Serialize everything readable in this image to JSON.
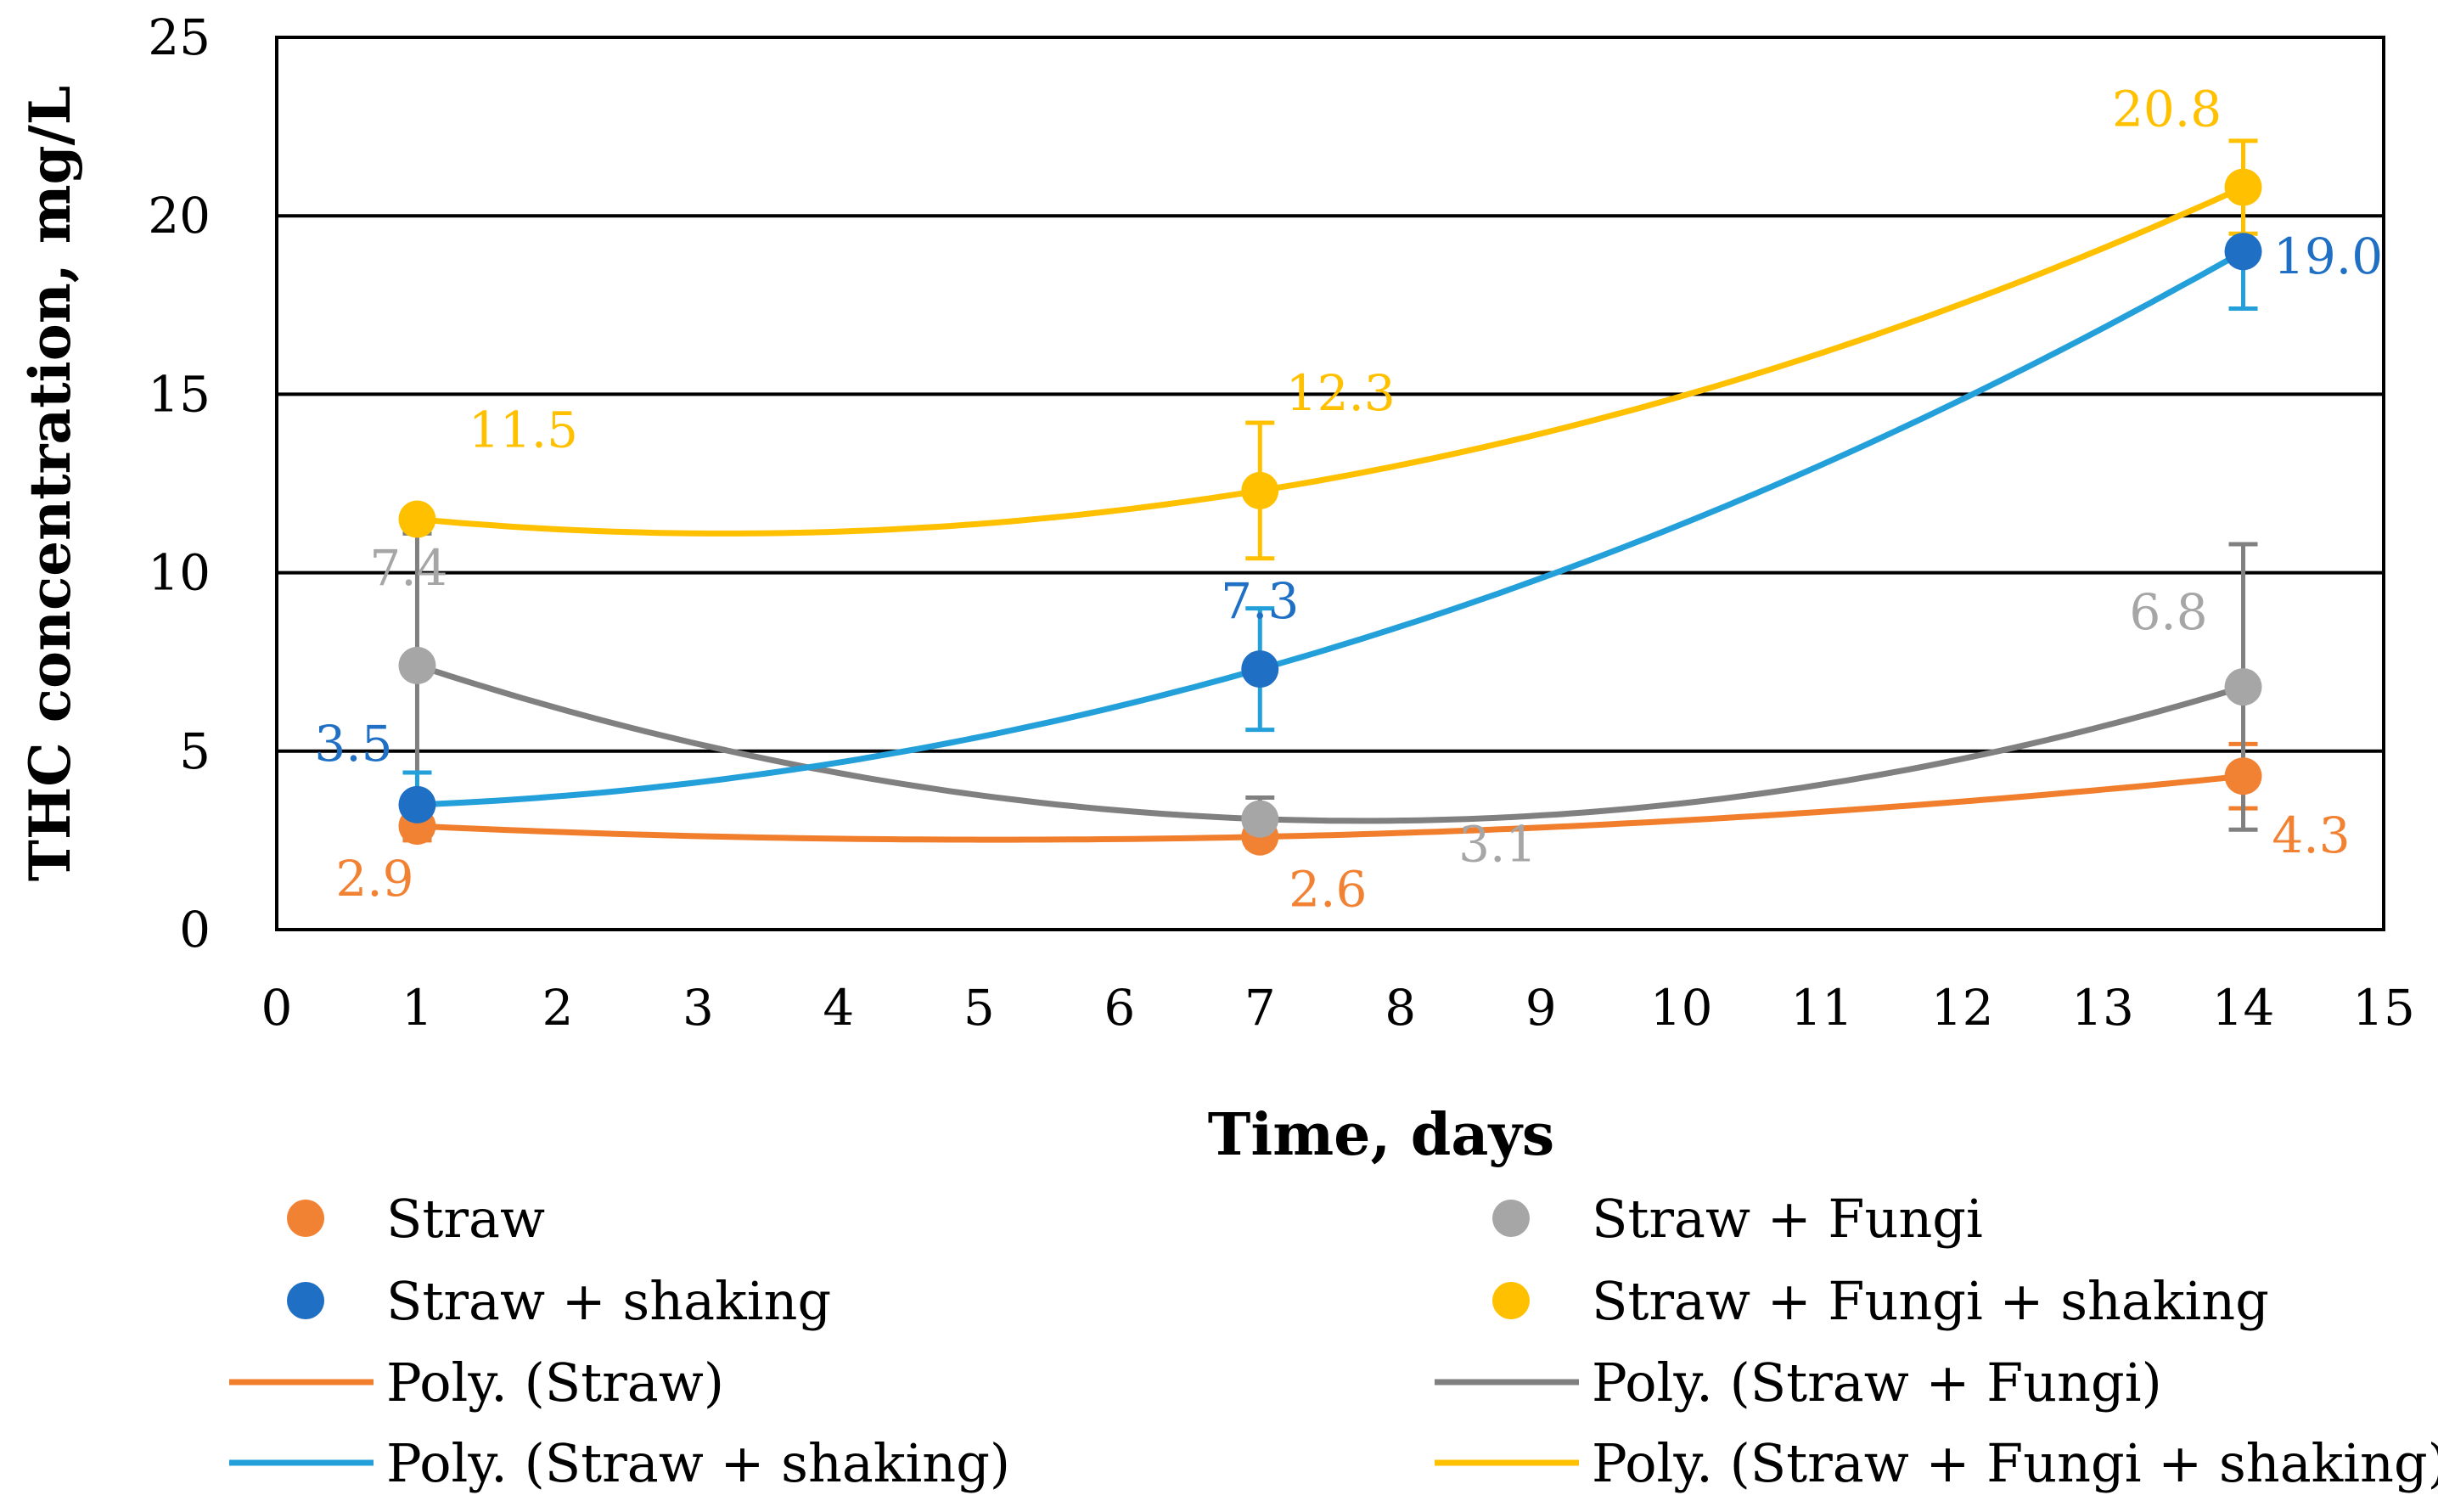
{
  "chart_data": {
    "type": "scatter",
    "xlabel": "Time, days",
    "ylabel": "THC concentration, mg/L",
    "xlim": [
      0,
      15
    ],
    "ylim": [
      0,
      25
    ],
    "x_ticks": [
      "0",
      "1",
      "2",
      "3",
      "4",
      "5",
      "6",
      "7",
      "8",
      "9",
      "10",
      "11",
      "12",
      "13",
      "14",
      "15"
    ],
    "y_ticks": [
      "0",
      "5",
      "10",
      "15",
      "20",
      "25"
    ],
    "grid": "horizontal",
    "legend_position": "bottom",
    "series": [
      {
        "name": "Straw",
        "trend_name": "Poly. (Straw)",
        "marker_color": "#F28233",
        "trend_color": "#F07E2C",
        "x": [
          1,
          7,
          14
        ],
        "y": [
          2.9,
          2.6,
          4.3
        ],
        "error": [
          0.4,
          0.3,
          0.9
        ],
        "labels": [
          "2.9",
          "2.6",
          "4.3"
        ]
      },
      {
        "name": "Straw + Fungi",
        "trend_name": "Poly. (Straw + Fungi)",
        "marker_color": "#A6A6A6",
        "trend_color": "#808080",
        "x": [
          1,
          7,
          14
        ],
        "y": [
          7.4,
          3.1,
          6.8
        ],
        "error": [
          3.7,
          0.6,
          4.0
        ],
        "labels": [
          "7.4",
          "3.1",
          "6.8"
        ]
      },
      {
        "name": "Straw + shaking",
        "trend_name": "Poly. (Straw + shaking)",
        "marker_color": "#1F6FC5",
        "trend_color": "#23A0DA",
        "x": [
          1,
          7,
          14
        ],
        "y": [
          3.5,
          7.3,
          19.0
        ],
        "error": [
          0.9,
          1.7,
          1.6
        ],
        "labels": [
          "3.5",
          "7.3",
          "19.0"
        ]
      },
      {
        "name": "Straw + Fungi + shaking",
        "trend_name": "Poly. (Straw + Fungi + shaking)",
        "marker_color": "#FFC000",
        "trend_color": "#FFC000",
        "x": [
          1,
          7,
          14
        ],
        "y": [
          11.5,
          12.3,
          20.8
        ],
        "error": [
          0.0,
          1.9,
          1.3
        ],
        "labels": [
          "11.5",
          "12.3",
          "20.8"
        ]
      }
    ]
  }
}
